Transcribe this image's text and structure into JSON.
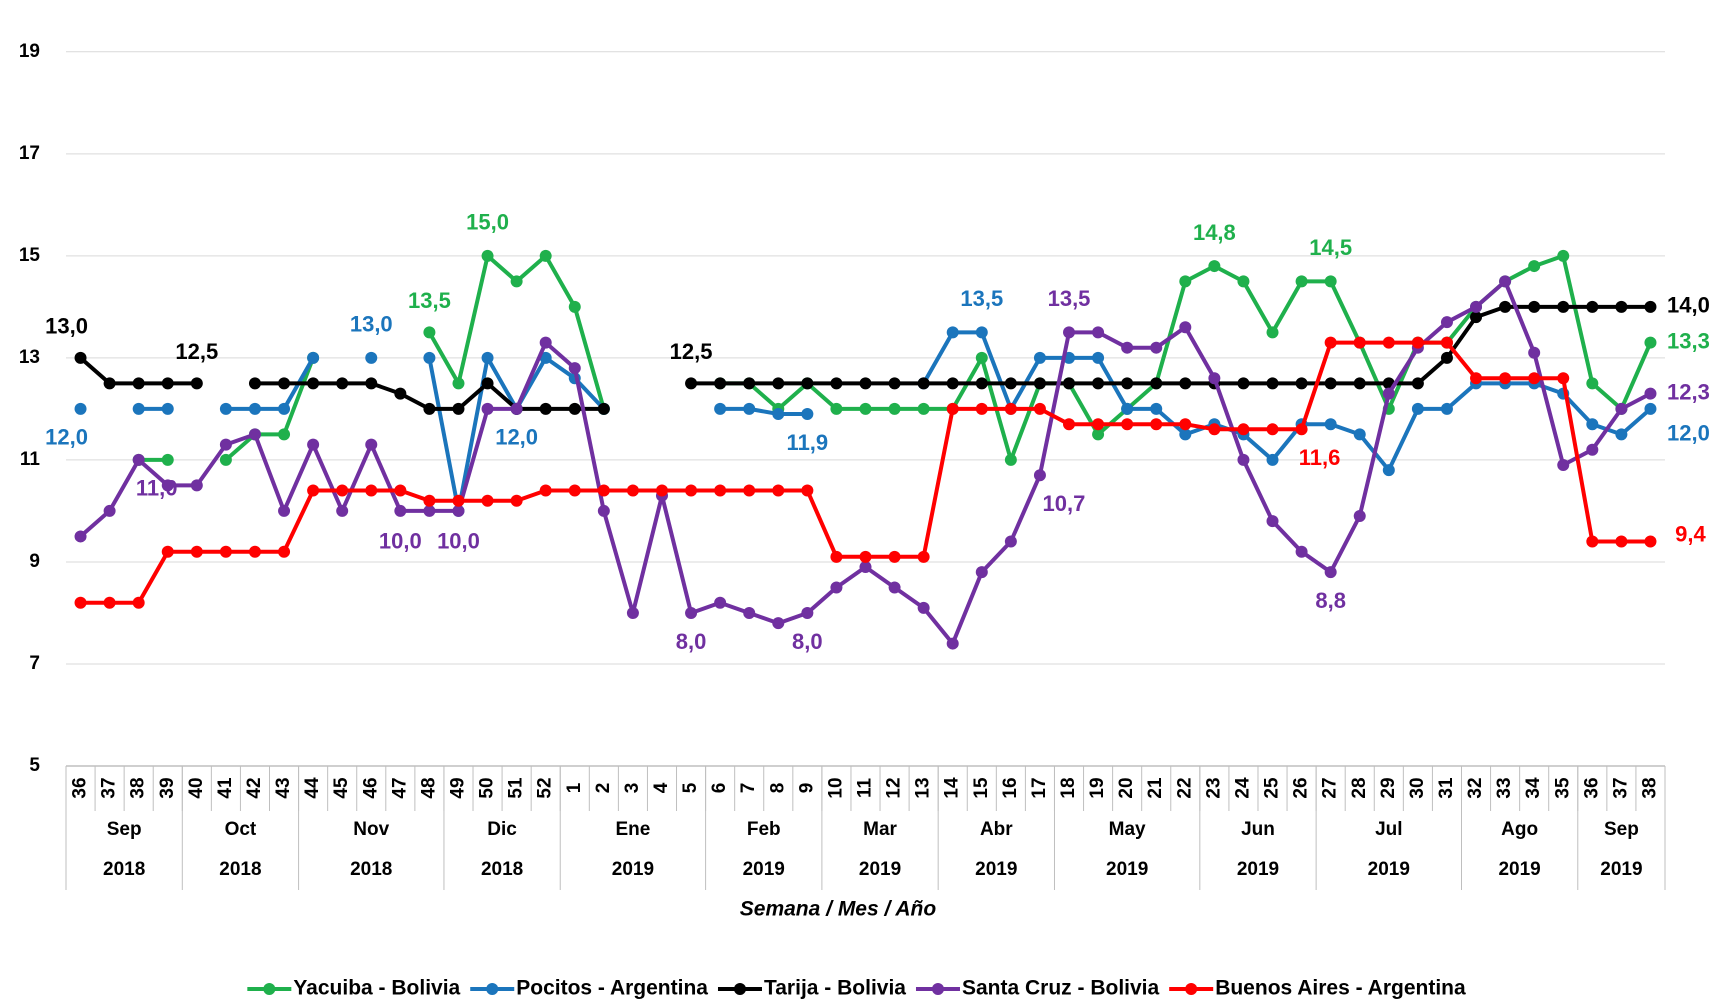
{
  "chart_data": {
    "type": "line",
    "x_label": "Semana / Mes / Año",
    "categories": [
      "36",
      "37",
      "38",
      "39",
      "40",
      "41",
      "42",
      "43",
      "44",
      "45",
      "46",
      "47",
      "48",
      "49",
      "50",
      "51",
      "52",
      "1",
      "2",
      "3",
      "4",
      "5",
      "6",
      "7",
      "8",
      "9",
      "10",
      "11",
      "12",
      "13",
      "14",
      "15",
      "16",
      "17",
      "18",
      "19",
      "20",
      "21",
      "22",
      "23",
      "24",
      "25",
      "26",
      "27",
      "28",
      "29",
      "30",
      "31",
      "32",
      "33",
      "34",
      "35",
      "36",
      "37",
      "38"
    ],
    "months": [
      "Sep",
      "Sep",
      "Sep",
      "Sep",
      "Oct",
      "Oct",
      "Oct",
      "Oct",
      "Nov",
      "Nov",
      "Nov",
      "Nov",
      "Nov",
      "Dic",
      "Dic",
      "Dic",
      "Dic",
      "Ene",
      "Ene",
      "Ene",
      "Ene",
      "Ene",
      "Feb",
      "Feb",
      "Feb",
      "Feb",
      "Mar",
      "Mar",
      "Mar",
      "Mar",
      "Abr",
      "Abr",
      "Abr",
      "Abr",
      "May",
      "May",
      "May",
      "May",
      "May",
      "Jun",
      "Jun",
      "Jun",
      "Jun",
      "Jul",
      "Jul",
      "Jul",
      "Jul",
      "Jul",
      "Ago",
      "Ago",
      "Ago",
      "Ago",
      "Sep",
      "Sep",
      "Sep"
    ],
    "years": [
      "2018",
      "2018",
      "2018",
      "2018",
      "2018",
      "2018",
      "2018",
      "2018",
      "2018",
      "2018",
      "2018",
      "2018",
      "2018",
      "2018",
      "2018",
      "2018",
      "2018",
      "2019",
      "2019",
      "2019",
      "2019",
      "2019",
      "2019",
      "2019",
      "2019",
      "2019",
      "2019",
      "2019",
      "2019",
      "2019",
      "2019",
      "2019",
      "2019",
      "2019",
      "2019",
      "2019",
      "2019",
      "2019",
      "2019",
      "2019",
      "2019",
      "2019",
      "2019",
      "2019",
      "2019",
      "2019",
      "2019",
      "2019",
      "2019",
      "2019",
      "2019",
      "2019",
      "2019",
      "2019",
      "2019"
    ],
    "ylim": [
      5,
      19.8
    ],
    "yticks": [
      5,
      7,
      9,
      11,
      13,
      15,
      17,
      19
    ],
    "grid": true,
    "series": [
      {
        "name": "Yacuiba - Bolivia",
        "color": "#1fb04c",
        "values": [
          null,
          null,
          11.0,
          11.0,
          null,
          11.0,
          11.5,
          11.5,
          13.0,
          null,
          null,
          null,
          13.5,
          12.5,
          15.0,
          14.5,
          15.0,
          14.0,
          12.0,
          null,
          null,
          null,
          12.5,
          12.5,
          12.0,
          12.5,
          12.0,
          12.0,
          12.0,
          12.0,
          12.0,
          13.0,
          11.0,
          12.5,
          12.5,
          11.5,
          12.0,
          12.5,
          14.5,
          14.8,
          14.5,
          13.5,
          14.5,
          14.5,
          13.3,
          12.0,
          13.3,
          13.3,
          14.0,
          14.5,
          14.8,
          15.0,
          12.5,
          12.0,
          13.3
        ],
        "value_labels": [
          null,
          null,
          null,
          null,
          null,
          null,
          null,
          null,
          null,
          null,
          null,
          null,
          "13,5",
          null,
          "15,0",
          null,
          null,
          null,
          null,
          null,
          null,
          null,
          null,
          null,
          null,
          null,
          null,
          null,
          null,
          null,
          null,
          null,
          null,
          null,
          null,
          null,
          null,
          null,
          null,
          "14,8",
          null,
          null,
          null,
          "14,5",
          null,
          null,
          null,
          null,
          null,
          null,
          null,
          null,
          null,
          null,
          "13,3"
        ]
      },
      {
        "name": "Pocitos - Argentina",
        "color": "#1b75bc",
        "values": [
          12.0,
          null,
          12.0,
          12.0,
          null,
          12.0,
          12.0,
          12.0,
          13.0,
          null,
          13.0,
          null,
          13.0,
          10.0,
          13.0,
          12.0,
          13.0,
          12.6,
          12.0,
          null,
          null,
          null,
          12.0,
          12.0,
          11.9,
          11.9,
          null,
          null,
          null,
          12.5,
          13.5,
          13.5,
          12.0,
          13.0,
          13.0,
          13.0,
          12.0,
          12.0,
          11.5,
          11.7,
          11.5,
          11.0,
          11.7,
          11.7,
          11.5,
          10.8,
          12.0,
          12.0,
          12.5,
          12.5,
          12.5,
          12.3,
          11.7,
          11.5,
          12.0
        ],
        "value_labels": [
          "12,0",
          null,
          null,
          null,
          null,
          null,
          null,
          null,
          null,
          null,
          "13,0",
          null,
          null,
          null,
          null,
          "12,0",
          null,
          null,
          null,
          null,
          null,
          null,
          null,
          null,
          null,
          "11,9",
          null,
          null,
          null,
          null,
          null,
          "13,5",
          null,
          null,
          null,
          null,
          null,
          null,
          null,
          null,
          null,
          null,
          null,
          null,
          null,
          null,
          null,
          null,
          null,
          null,
          null,
          null,
          null,
          null,
          "12,0"
        ]
      },
      {
        "name": "Tarija - Bolivia",
        "color": "#000000",
        "values": [
          13.0,
          12.5,
          12.5,
          12.5,
          12.5,
          null,
          12.5,
          12.5,
          12.5,
          12.5,
          12.5,
          12.3,
          12.0,
          12.0,
          12.5,
          12.0,
          12.0,
          12.0,
          12.0,
          null,
          null,
          12.5,
          12.5,
          12.5,
          12.5,
          12.5,
          12.5,
          12.5,
          12.5,
          12.5,
          12.5,
          12.5,
          12.5,
          12.5,
          12.5,
          12.5,
          12.5,
          12.5,
          12.5,
          12.5,
          12.5,
          12.5,
          12.5,
          12.5,
          12.5,
          12.5,
          12.5,
          13.0,
          13.8,
          14.0,
          14.0,
          14.0,
          14.0,
          14.0,
          14.0
        ],
        "value_labels": [
          "13,0",
          null,
          null,
          null,
          "12,5",
          null,
          null,
          null,
          null,
          null,
          null,
          null,
          null,
          null,
          null,
          null,
          null,
          null,
          null,
          null,
          null,
          "12,5",
          null,
          null,
          null,
          null,
          null,
          null,
          null,
          null,
          null,
          null,
          null,
          null,
          null,
          null,
          null,
          null,
          null,
          null,
          null,
          null,
          null,
          null,
          null,
          null,
          null,
          null,
          null,
          null,
          null,
          null,
          null,
          null,
          "14,0"
        ]
      },
      {
        "name": "Santa Cruz - Bolivia",
        "color": "#7030a0",
        "values": [
          9.5,
          10.0,
          11.0,
          10.5,
          10.5,
          11.3,
          11.5,
          10.0,
          11.3,
          10.0,
          11.3,
          10.0,
          10.0,
          10.0,
          12.0,
          12.0,
          13.3,
          12.8,
          10.0,
          8.0,
          10.3,
          8.0,
          8.2,
          8.0,
          7.8,
          8.0,
          8.5,
          8.9,
          8.5,
          8.1,
          7.4,
          8.8,
          9.4,
          10.7,
          13.5,
          13.5,
          13.2,
          13.2,
          13.6,
          12.6,
          11.0,
          9.8,
          9.2,
          8.8,
          9.9,
          12.3,
          13.2,
          13.7,
          14.0,
          14.5,
          13.1,
          10.9,
          11.2,
          12.0,
          12.3
        ],
        "value_labels": [
          null,
          null,
          "11,0",
          null,
          null,
          null,
          null,
          null,
          null,
          null,
          null,
          "10,0",
          null,
          "10,0",
          null,
          null,
          null,
          null,
          null,
          null,
          null,
          "8,0",
          null,
          null,
          null,
          "8,0",
          null,
          null,
          null,
          null,
          null,
          null,
          null,
          "10,7",
          "13,5",
          null,
          null,
          null,
          null,
          null,
          null,
          null,
          null,
          "8,8",
          null,
          null,
          null,
          null,
          null,
          null,
          null,
          null,
          null,
          null,
          "12,3"
        ]
      },
      {
        "name": "Buenos Aires - Argentina",
        "color": "#ff0000",
        "values": [
          8.2,
          8.2,
          8.2,
          9.2,
          9.2,
          9.2,
          9.2,
          9.2,
          10.4,
          10.4,
          10.4,
          10.4,
          10.2,
          10.2,
          10.2,
          10.2,
          10.4,
          10.4,
          10.4,
          10.4,
          10.4,
          10.4,
          10.4,
          10.4,
          10.4,
          10.4,
          9.1,
          9.1,
          9.1,
          9.1,
          12.0,
          12.0,
          12.0,
          12.0,
          11.7,
          11.7,
          11.7,
          11.7,
          11.7,
          11.6,
          11.6,
          11.6,
          11.6,
          13.3,
          13.3,
          13.3,
          13.3,
          13.3,
          12.6,
          12.6,
          12.6,
          12.6,
          9.4,
          9.4,
          9.4
        ],
        "value_labels": [
          null,
          null,
          null,
          null,
          null,
          null,
          null,
          null,
          null,
          null,
          null,
          null,
          null,
          null,
          null,
          null,
          null,
          null,
          null,
          null,
          null,
          null,
          null,
          null,
          null,
          null,
          null,
          null,
          null,
          null,
          null,
          null,
          null,
          null,
          null,
          null,
          null,
          null,
          null,
          null,
          null,
          null,
          "11,6",
          null,
          null,
          null,
          null,
          null,
          null,
          null,
          null,
          null,
          null,
          null,
          "9,4"
        ]
      }
    ]
  }
}
